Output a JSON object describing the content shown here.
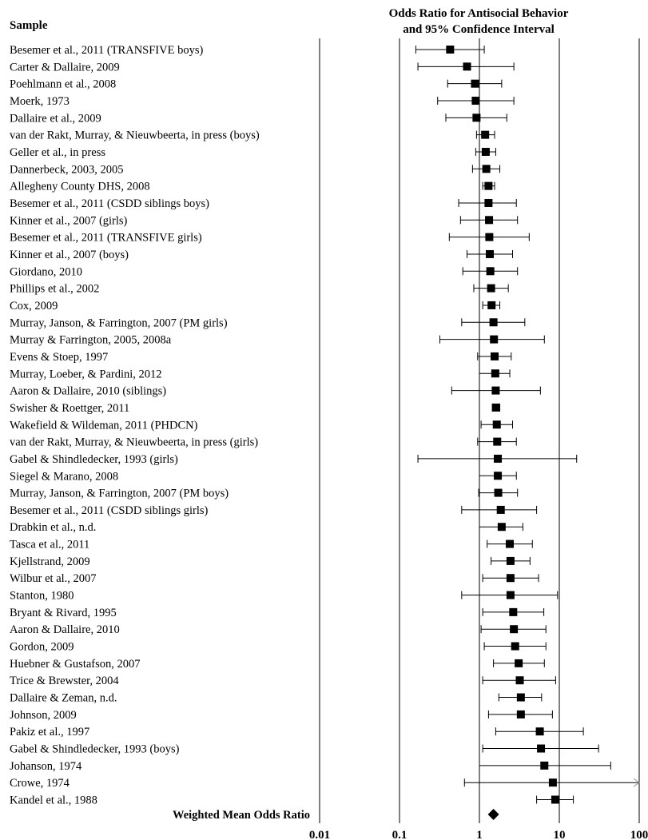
{
  "chart_data": {
    "type": "forest",
    "title_line1": "Odds Ratio for Antisocial Behavior",
    "title_line2": "and 95% Confidence Interval",
    "sample_header": "Sample",
    "x_scale": "log",
    "xlim": [
      0.01,
      100
    ],
    "x_ticks": [
      {
        "value": 0.01,
        "label": "0.01"
      },
      {
        "value": 0.1,
        "label": "0.1"
      },
      {
        "value": 1,
        "label": "1"
      },
      {
        "value": 10,
        "label": "10"
      },
      {
        "value": 100,
        "label": "100"
      }
    ],
    "grid": true,
    "studies": [
      {
        "label": "Besemer et al., 2011 (TRANSFIVE boys)",
        "or": 0.43,
        "lo": 0.16,
        "hi": 1.15
      },
      {
        "label": "Carter & Dallaire, 2009",
        "or": 0.7,
        "lo": 0.17,
        "hi": 2.7
      },
      {
        "label": "Poehlmann et al., 2008",
        "or": 0.88,
        "lo": 0.4,
        "hi": 1.9
      },
      {
        "label": "Moerk, 1973",
        "or": 0.9,
        "lo": 0.3,
        "hi": 2.7
      },
      {
        "label": "Dallaire et al., 2009",
        "or": 0.92,
        "lo": 0.38,
        "hi": 2.2
      },
      {
        "label": "van der Rakt, Murray, & Nieuwbeerta, in press (boys)",
        "or": 1.18,
        "lo": 0.92,
        "hi": 1.55
      },
      {
        "label": "Geller et al., in press",
        "or": 1.2,
        "lo": 0.9,
        "hi": 1.6
      },
      {
        "label": "Dannerbeck, 2003, 2005",
        "or": 1.22,
        "lo": 0.82,
        "hi": 1.8
      },
      {
        "label": "Allegheny County DHS, 2008",
        "or": 1.3,
        "lo": 1.1,
        "hi": 1.55
      },
      {
        "label": "Besemer et al., 2011 (CSDD siblings boys)",
        "or": 1.3,
        "lo": 0.55,
        "hi": 2.9
      },
      {
        "label": "Kinner et al., 2007 (girls)",
        "or": 1.32,
        "lo": 0.58,
        "hi": 3.0
      },
      {
        "label": "Besemer et al., 2011 (TRANSFIVE girls)",
        "or": 1.33,
        "lo": 0.42,
        "hi": 4.2
      },
      {
        "label": "Kinner et al., 2007 (boys)",
        "or": 1.35,
        "lo": 0.7,
        "hi": 2.6
      },
      {
        "label": "Giordano, 2010",
        "or": 1.37,
        "lo": 0.62,
        "hi": 3.0
      },
      {
        "label": "Phillips et al., 2002",
        "or": 1.4,
        "lo": 0.85,
        "hi": 2.3
      },
      {
        "label": "Cox, 2009",
        "or": 1.42,
        "lo": 1.1,
        "hi": 1.8
      },
      {
        "label": "Murray, Janson, & Farrington, 2007 (PM girls)",
        "or": 1.5,
        "lo": 0.6,
        "hi": 3.7
      },
      {
        "label": "Murray & Farrington, 2005, 2008a",
        "or": 1.52,
        "lo": 0.32,
        "hi": 6.5
      },
      {
        "label": "Evens & Stoep, 1997",
        "or": 1.55,
        "lo": 0.95,
        "hi": 2.5
      },
      {
        "label": "Murray, Loeber, & Pardini, 2012",
        "or": 1.58,
        "lo": 1.0,
        "hi": 2.4
      },
      {
        "label": "Aaron & Dallaire, 2010 (siblings)",
        "or": 1.6,
        "lo": 0.45,
        "hi": 5.8
      },
      {
        "label": "Swisher & Roettger, 2011",
        "or": 1.62,
        "lo": 1.45,
        "hi": 1.8
      },
      {
        "label": "Wakefield & Wildeman, 2011 (PHDCN)",
        "or": 1.65,
        "lo": 1.05,
        "hi": 2.6
      },
      {
        "label": "van der Rakt, Murray, & Nieuwbeerta, in press (girls)",
        "or": 1.67,
        "lo": 0.95,
        "hi": 2.9
      },
      {
        "label": "Gabel & Shindledecker, 1993 (girls)",
        "or": 1.7,
        "lo": 0.17,
        "hi": 16.5
      },
      {
        "label": "Siegel & Marano, 2008",
        "or": 1.7,
        "lo": 1.0,
        "hi": 2.9
      },
      {
        "label": "Murray, Janson, & Farrington, 2007 (PM boys)",
        "or": 1.72,
        "lo": 0.98,
        "hi": 3.0
      },
      {
        "label": "Besemer et al., 2011 (CSDD siblings girls)",
        "or": 1.85,
        "lo": 0.6,
        "hi": 5.2
      },
      {
        "label": "Drabkin et al., n.d.",
        "or": 1.9,
        "lo": 1.0,
        "hi": 3.5
      },
      {
        "label": "Tasca et al., 2011",
        "or": 2.4,
        "lo": 1.25,
        "hi": 4.6
      },
      {
        "label": "Kjellstrand, 2009",
        "or": 2.45,
        "lo": 1.4,
        "hi": 4.3
      },
      {
        "label": "Wilbur et al., 2007",
        "or": 2.45,
        "lo": 1.1,
        "hi": 5.5
      },
      {
        "label": "Stanton, 1980",
        "or": 2.45,
        "lo": 0.6,
        "hi": 9.5
      },
      {
        "label": "Bryant & Rivard, 1995",
        "or": 2.65,
        "lo": 1.1,
        "hi": 6.4
      },
      {
        "label": "Aaron & Dallaire, 2010",
        "or": 2.7,
        "lo": 1.05,
        "hi": 6.8
      },
      {
        "label": "Gordon, 2009",
        "or": 2.8,
        "lo": 1.15,
        "hi": 6.8
      },
      {
        "label": "Huebner & Gustafson, 2007",
        "or": 3.1,
        "lo": 1.5,
        "hi": 6.5
      },
      {
        "label": "Trice & Brewster, 2004",
        "or": 3.2,
        "lo": 1.1,
        "hi": 9.0
      },
      {
        "label": "Dallaire & Zeman, n.d.",
        "or": 3.3,
        "lo": 1.75,
        "hi": 6.0
      },
      {
        "label": "Johnson, 2009",
        "or": 3.3,
        "lo": 1.3,
        "hi": 8.2
      },
      {
        "label": "Pakiz et al., 1997",
        "or": 5.7,
        "lo": 1.6,
        "hi": 20.0
      },
      {
        "label": "Gabel & Shindledecker, 1993 (boys)",
        "or": 5.9,
        "lo": 1.1,
        "hi": 31.0
      },
      {
        "label": "Johanson, 1974",
        "or": 6.5,
        "lo": 1.0,
        "hi": 44.0
      },
      {
        "label": "Crowe, 1974",
        "or": 8.3,
        "lo": 0.65,
        "hi": 100,
        "arrow": true
      },
      {
        "label": "Kandel et al., 1988",
        "or": 8.9,
        "lo": 5.2,
        "hi": 15.0
      }
    ],
    "summary": {
      "label": "Weighted Mean Odds Ratio",
      "or": 1.5
    }
  }
}
